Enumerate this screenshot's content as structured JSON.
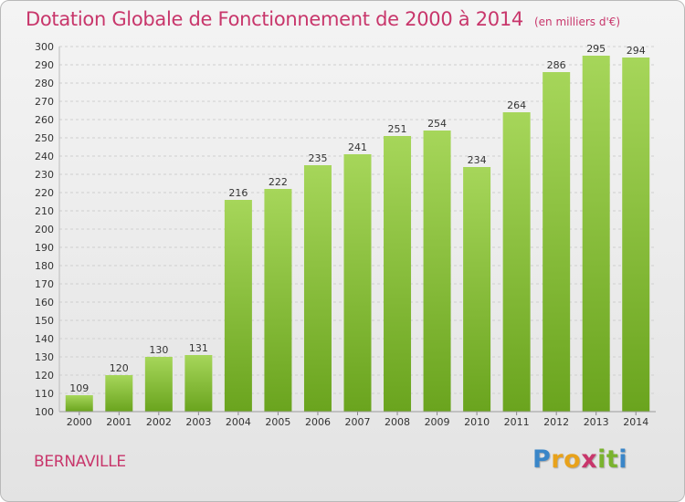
{
  "chart_data": {
    "type": "bar",
    "title": "Dotation Globale de Fonctionnement de 2000 à 2014",
    "subtitle": "(en milliers d'€)",
    "categories": [
      "2000",
      "2001",
      "2002",
      "2003",
      "2004",
      "2005",
      "2006",
      "2007",
      "2008",
      "2009",
      "2010",
      "2011",
      "2012",
      "2013",
      "2014"
    ],
    "values": [
      109,
      120,
      130,
      131,
      216,
      222,
      235,
      241,
      251,
      254,
      234,
      264,
      286,
      295,
      294
    ],
    "ylim": [
      100,
      300
    ],
    "yticks": [
      100,
      110,
      120,
      130,
      140,
      150,
      160,
      170,
      180,
      190,
      200,
      210,
      220,
      230,
      240,
      250,
      260,
      270,
      280,
      290,
      300
    ],
    "xlabel": "",
    "ylabel": "",
    "grid": true,
    "bar_color_top": "#a6d65a",
    "bar_color_bottom": "#6aa41e"
  },
  "place_name": "BERNAVILLE",
  "brand": {
    "letters": [
      "P",
      "r",
      "o",
      "x",
      "i",
      "t",
      "i"
    ],
    "colors": [
      "#3a86c8",
      "#e8a21b",
      "#e8a21b",
      "#c8366b",
      "#7ab32e",
      "#7ab32e",
      "#3a86c8"
    ]
  },
  "colors": {
    "title": "#c8366b",
    "grid": "#cfcfcf",
    "axis_text": "#333333"
  }
}
